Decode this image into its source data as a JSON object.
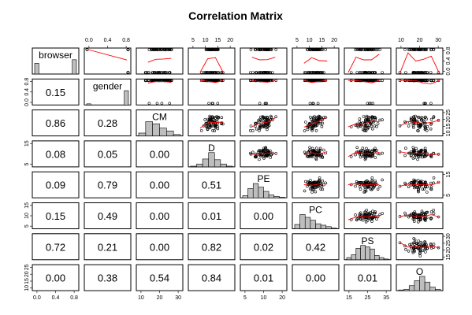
{
  "chart_data": {
    "type": "scatter",
    "title": "Correlation Matrix",
    "variables": [
      "browser",
      "gender",
      "CM",
      "D",
      "PE",
      "PC",
      "PS",
      "O"
    ],
    "ranges": {
      "browser": [
        0,
        1
      ],
      "gender": [
        0,
        1
      ],
      "CM": [
        9,
        35
      ],
      "D": [
        3,
        21
      ],
      "PE": [
        4,
        26
      ],
      "PC": [
        3,
        23
      ],
      "PS": [
        12,
        36
      ],
      "O": [
        7,
        32
      ]
    },
    "top_axis_ticks": {
      "gender": [
        "0.0",
        "0.4",
        "0.8"
      ],
      "D": [
        "5",
        "10",
        "15",
        "20"
      ],
      "PC": [
        "5",
        "10",
        "15",
        "20"
      ],
      "O": [
        "10",
        "20",
        "30"
      ]
    },
    "bottom_axis_ticks": {
      "browser": [
        "0.0",
        "0.4",
        "0.8"
      ],
      "CM": [
        "10",
        "20",
        "30"
      ],
      "PE": [
        "5",
        "10",
        "20"
      ],
      "PS": [
        "15",
        "25",
        "35"
      ]
    },
    "right_axis_ticks": {
      "browser": [
        "0.0",
        "0.4",
        "0.8"
      ],
      "CM": [
        "10",
        "15",
        "20",
        "25"
      ],
      "PE": [
        "5",
        "15"
      ],
      "PS": [
        "15",
        "20",
        "25",
        "30"
      ]
    },
    "left_axis_ticks": {
      "gender": [
        "0.0",
        "0.4",
        "0.8"
      ],
      "D": [
        "5",
        "15"
      ],
      "PC": [
        "5",
        "10",
        "15"
      ],
      "O": [
        "10",
        "15",
        "20",
        "25"
      ]
    },
    "histograms": {
      "browser": [
        0.75,
        0,
        0,
        0,
        0,
        0,
        0,
        0,
        0,
        1.0
      ],
      "gender": [
        0.08,
        0,
        0,
        0,
        0,
        0,
        0,
        0,
        0,
        1.0
      ],
      "CM": [
        0.2,
        1.0,
        0.85,
        0.55,
        0.35,
        0.1
      ],
      "D": [
        0.05,
        0.2,
        0.55,
        1.0,
        0.5,
        0.2,
        0.05
      ],
      "PE": [
        0.15,
        0.65,
        1.0,
        0.75,
        0.45,
        0.2,
        0.1,
        0.05
      ],
      "PC": [
        0.3,
        1.0,
        0.8,
        0.6,
        0.35,
        0.25,
        0.15,
        0.05
      ],
      "PS": [
        0.15,
        0.35,
        0.8,
        1.0,
        0.9,
        0.75,
        0.3,
        0.15,
        0.05
      ],
      "O": [
        0.05,
        0.1,
        0.35,
        0.7,
        1.0,
        0.6,
        0.25,
        0.1
      ]
    },
    "p_values": [
      [
        null,
        null,
        null,
        null,
        null,
        null,
        null,
        null
      ],
      [
        "0.15",
        null,
        null,
        null,
        null,
        null,
        null,
        null
      ],
      [
        "0.86",
        "0.28",
        null,
        null,
        null,
        null,
        null,
        null
      ],
      [
        "0.08",
        "0.05",
        "0.00",
        null,
        null,
        null,
        null,
        null
      ],
      [
        "0.09",
        "0.79",
        "0.00",
        "0.51",
        null,
        null,
        null,
        null
      ],
      [
        "0.15",
        "0.49",
        "0.00",
        "0.01",
        "0.00",
        null,
        null,
        null
      ],
      [
        "0.72",
        "0.21",
        "0.00",
        "0.82",
        "0.02",
        "0.42",
        null,
        null
      ],
      [
        "0.00",
        "0.38",
        "0.54",
        "0.84",
        "0.01",
        "0.00",
        "0.01",
        null
      ]
    ]
  }
}
